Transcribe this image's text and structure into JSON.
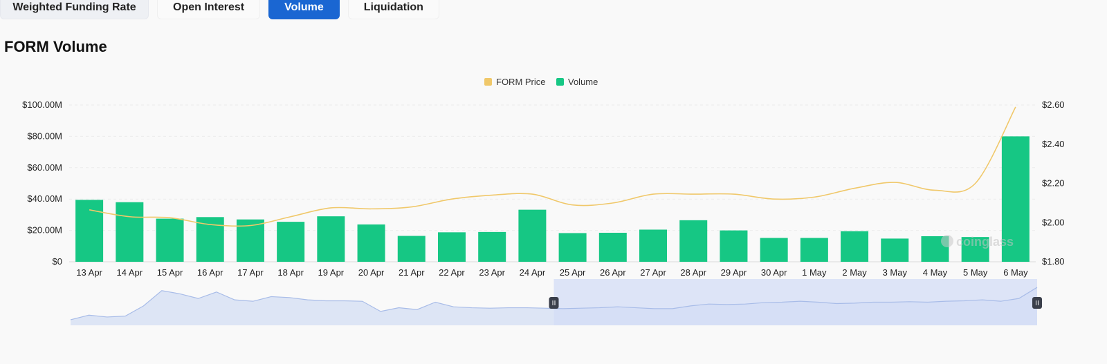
{
  "tabs": [
    {
      "label": "Weighted Funding Rate",
      "active": false
    },
    {
      "label": "Open Interest",
      "active": false
    },
    {
      "label": "Volume",
      "active": true
    },
    {
      "label": "Liquidation",
      "active": false
    }
  ],
  "title": "FORM Volume",
  "watermark": "coinglass",
  "colors": {
    "volume": "#16c784",
    "price": "#f0c86a",
    "accent": "#1a66d2",
    "grid": "#ececec",
    "navigator_fill": "#dde5f5",
    "navigator_selected": "#d3dcf6",
    "navigator_line": "#a8bce8"
  },
  "chart_data": {
    "type": "bar",
    "categories": [
      "13 Apr",
      "14 Apr",
      "15 Apr",
      "16 Apr",
      "17 Apr",
      "18 Apr",
      "19 Apr",
      "20 Apr",
      "21 Apr",
      "22 Apr",
      "23 Apr",
      "24 Apr",
      "25 Apr",
      "26 Apr",
      "27 Apr",
      "28 Apr",
      "29 Apr",
      "30 Apr",
      "1 May",
      "2 May",
      "3 May",
      "4 May",
      "5 May",
      "6 May"
    ],
    "series": [
      {
        "name": "Volume",
        "type": "bar",
        "axis": "left",
        "values": [
          39.5,
          38.0,
          27.5,
          28.5,
          27.0,
          25.5,
          29.0,
          23.8,
          16.5,
          18.8,
          19.0,
          33.2,
          18.3,
          18.5,
          20.5,
          26.5,
          20.0,
          15.2,
          15.2,
          19.5,
          14.8,
          16.3,
          15.8,
          80.0
        ]
      },
      {
        "name": "FORM Price",
        "type": "line",
        "axis": "right",
        "values": [
          2.065,
          2.03,
          2.025,
          1.99,
          1.985,
          2.03,
          2.075,
          2.07,
          2.08,
          2.12,
          2.14,
          2.145,
          2.09,
          2.1,
          2.145,
          2.145,
          2.145,
          2.12,
          2.13,
          2.175,
          2.205,
          2.165,
          2.2,
          2.59
        ]
      }
    ],
    "yaxis_left": {
      "ticks": [
        "$0",
        "$20.00M",
        "$40.00M",
        "$60.00M",
        "$80.00M",
        "$100.00M"
      ],
      "range": [
        0,
        100
      ],
      "unit": "M USD"
    },
    "yaxis_right": {
      "ticks": [
        "$1.80",
        "$2.00",
        "$2.20",
        "$2.40",
        "$2.60"
      ],
      "range": [
        1.8,
        2.6
      ]
    },
    "legend": [
      {
        "label": "FORM Price",
        "color": "#f0c86a"
      },
      {
        "label": "Volume",
        "color": "#16c784"
      }
    ],
    "legend_position": "top-center",
    "grid": true,
    "navigator": {
      "profile": [
        0.12,
        0.22,
        0.18,
        0.2,
        0.42,
        0.75,
        0.68,
        0.58,
        0.72,
        0.55,
        0.52,
        0.62,
        0.6,
        0.55,
        0.53,
        0.53,
        0.52,
        0.3,
        0.38,
        0.34,
        0.5,
        0.4,
        0.38,
        0.37,
        0.38,
        0.38,
        0.37,
        0.36,
        0.37,
        0.38,
        0.4,
        0.38,
        0.36,
        0.36,
        0.42,
        0.46,
        0.45,
        0.46,
        0.49,
        0.5,
        0.52,
        0.5,
        0.47,
        0.48,
        0.5,
        0.5,
        0.51,
        0.5,
        0.52,
        0.53,
        0.55,
        0.52,
        0.58,
        0.82
      ],
      "selection_start": 0.5,
      "selection_end": 1.0
    }
  }
}
